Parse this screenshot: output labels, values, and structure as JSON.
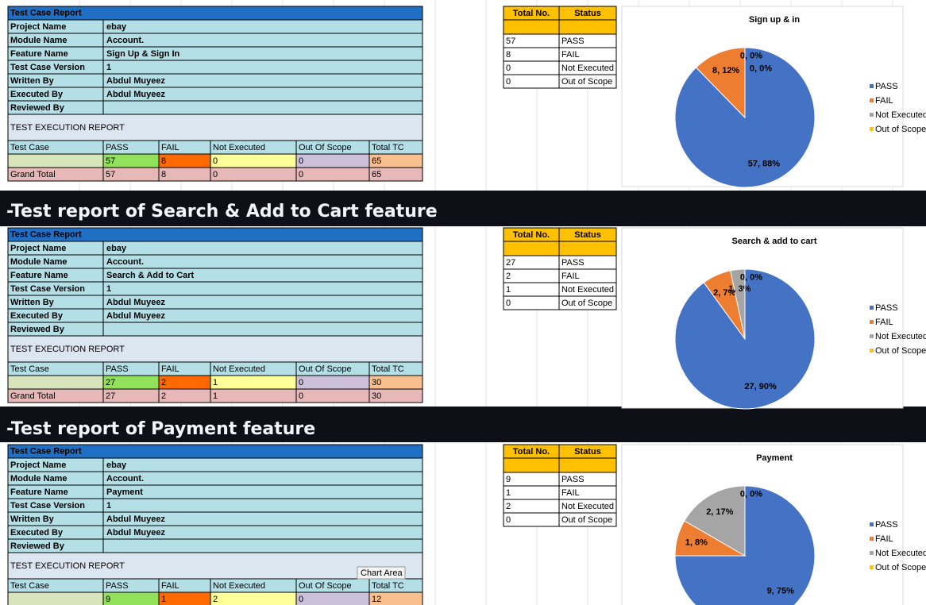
{
  "sections": [
    {
      "report": {
        "title": "Test Case Report",
        "fields": [
          {
            "label": "Project Name",
            "value": "ebay"
          },
          {
            "label": "Module Name",
            "value": "Account."
          },
          {
            "label": "Feature Name",
            "value": "Sign Up & Sign In"
          },
          {
            "label": "Test Case Version",
            "value": 1
          },
          {
            "label": "Written By",
            "value": "Abdul Muyeez"
          },
          {
            "label": "Executed By",
            "value": "Abdul Muyeez"
          },
          {
            "label": "Reviewed By"
          }
        ],
        "exec_title": "TEST EXECUTION REPORT",
        "columns": [
          "Test Case",
          "PASS",
          "FAIL",
          "Not Executed",
          "Out Of Scope",
          "Total TC"
        ],
        "counts": [
          57,
          8,
          0,
          0,
          65
        ],
        "grand_total": {
          "label": "Grand Total",
          "values": [
            57,
            8,
            0,
            0,
            65
          ]
        }
      },
      "summary": {
        "headers": [
          "Total No.",
          "Status"
        ],
        "rows": [
          [
            57,
            "PASS"
          ],
          [
            8,
            "FAIL"
          ],
          [
            0,
            "Not Executed"
          ],
          [
            0,
            "Out of Scope"
          ]
        ]
      }
    },
    {
      "heading": "-Test report of Search & Add to Cart feature",
      "report": {
        "title": "Test Case Report",
        "fields": [
          {
            "label": "Project Name",
            "value": "ebay"
          },
          {
            "label": "Module Name",
            "value": "Account."
          },
          {
            "label": "Feature Name",
            "value": "Search & Add to Cart"
          },
          {
            "label": "Test Case Version",
            "value": 1
          },
          {
            "label": "Written By",
            "value": "Abdul Muyeez"
          },
          {
            "label": "Executed By",
            "value": "Abdul Muyeez"
          },
          {
            "label": "Reviewed By"
          }
        ],
        "exec_title": "TEST EXECUTION REPORT",
        "columns": [
          "Test Case",
          "PASS",
          "FAIL",
          "Not Executed",
          "Out Of Scope",
          "Total TC"
        ],
        "counts": [
          27,
          2,
          1,
          0,
          30
        ],
        "grand_total": {
          "label": "Grand Total",
          "values": [
            27,
            2,
            1,
            0,
            30
          ]
        }
      },
      "summary": {
        "headers": [
          "Total No.",
          "Status"
        ],
        "rows": [
          [
            27,
            "PASS"
          ],
          [
            2,
            "FAIL"
          ],
          [
            1,
            "Not Executed"
          ],
          [
            0,
            "Out of Scope"
          ]
        ]
      }
    },
    {
      "heading": "-Test report of Payment feature",
      "report": {
        "title": "Test Case Report",
        "fields": [
          {
            "label": "Project Name",
            "value": "ebay"
          },
          {
            "label": "Module Name",
            "value": "Account."
          },
          {
            "label": "Feature Name",
            "value": "Payment"
          },
          {
            "label": "Test Case Version",
            "value": 1
          },
          {
            "label": "Written By",
            "value": "Abdul Muyeez"
          },
          {
            "label": "Executed By",
            "value": "Abdul Muyeez"
          },
          {
            "label": "Reviewed By"
          }
        ],
        "exec_title": "TEST EXECUTION REPORT",
        "columns": [
          "Test Case",
          "PASS",
          "FAIL",
          "Not Executed",
          "Out Of Scope",
          "Total TC"
        ],
        "counts": [
          9,
          1,
          2,
          0,
          12
        ]
      },
      "summary": {
        "headers": [
          "Total No.",
          "Status"
        ],
        "rows": [
          [
            9,
            "PASS"
          ],
          [
            1,
            "FAIL"
          ],
          [
            2,
            "Not Executed"
          ],
          [
            0,
            "Out of Scope"
          ]
        ]
      },
      "tooltip": "Chart Area"
    }
  ],
  "chart_data": [
    {
      "type": "pie",
      "title": "Sign up & in",
      "categories": [
        "PASS",
        "FAIL",
        "Not Executed",
        "Out of Scope"
      ],
      "values": [
        57,
        8,
        0,
        0
      ],
      "value_labels": [
        "57, 88%",
        "8, 12%",
        "0, 0%",
        "0, 0%"
      ],
      "colors": [
        "#4472c4",
        "#ed7d31",
        "#a5a5a5",
        "#ffc000"
      ],
      "legend": "right"
    },
    {
      "type": "pie",
      "title": "Search & add to cart",
      "categories": [
        "PASS",
        "FAIL",
        "Not Executed",
        "Out of Scope"
      ],
      "values": [
        27,
        2,
        1,
        0
      ],
      "value_labels": [
        "27, 90%",
        "2, 7%",
        "1, 3%",
        "0, 0%"
      ],
      "colors": [
        "#4472c4",
        "#ed7d31",
        "#a5a5a5",
        "#ffc000"
      ],
      "legend": "right"
    },
    {
      "type": "pie",
      "title": "Payment",
      "categories": [
        "PASS",
        "FAIL",
        "Not Executed",
        "Out of Scope"
      ],
      "values": [
        9,
        1,
        2,
        0
      ],
      "value_labels": [
        "9, 75%",
        "1, 8%",
        "2, 17%",
        "0, 0%"
      ],
      "colors": [
        "#4472c4",
        "#ed7d31",
        "#a5a5a5",
        "#ffc000"
      ],
      "legend": "right"
    }
  ]
}
